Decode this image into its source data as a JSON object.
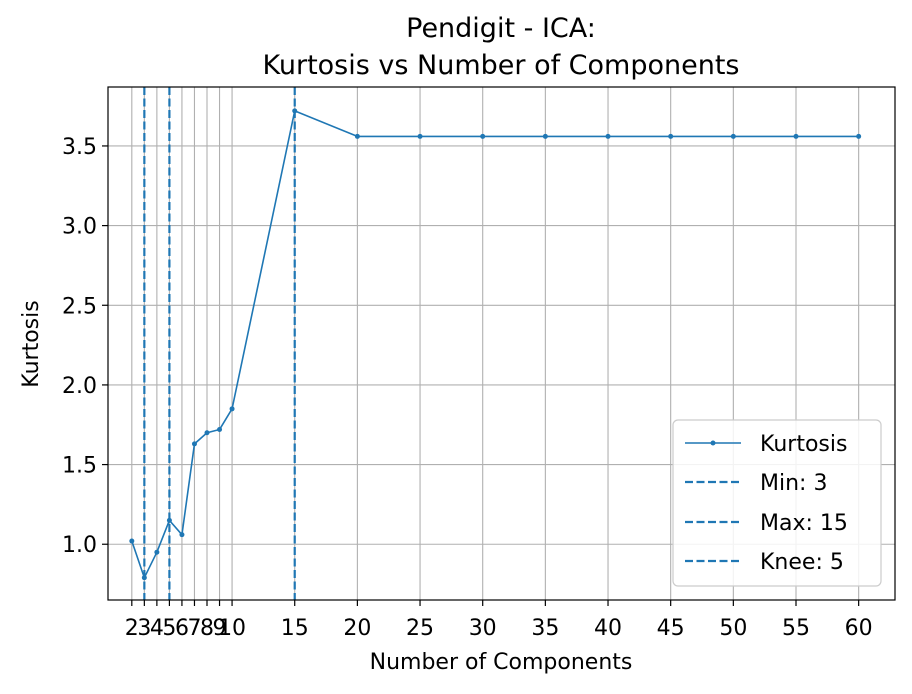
{
  "chart_data": {
    "type": "line",
    "title_lines": [
      "Pendigit - ICA:",
      "Kurtosis vs Number of Components"
    ],
    "xlabel": "Number of Components",
    "ylabel": "Kurtosis",
    "xlim": [
      0.1,
      62.9
    ],
    "ylim": [
      0.65,
      3.87
    ],
    "xticks": [
      2,
      3,
      4,
      5,
      6,
      7,
      8,
      9,
      10,
      15,
      20,
      25,
      30,
      35,
      40,
      45,
      50,
      55,
      60
    ],
    "xtick_labels": [
      "2",
      "3",
      "4",
      "5",
      "6",
      "7",
      "8",
      "9",
      "10",
      "15",
      "20",
      "25",
      "30",
      "35",
      "40",
      "45",
      "50",
      "55",
      "60"
    ],
    "yticks": [
      1.0,
      1.5,
      2.0,
      2.5,
      3.0,
      3.5
    ],
    "ytick_labels": [
      "1.0",
      "1.5",
      "2.0",
      "2.5",
      "3.0",
      "3.5"
    ],
    "grid": true,
    "legend_position": "bottom-right",
    "series": [
      {
        "name": "Kurtosis",
        "color": "#1f77b4",
        "marker": "dot",
        "x": [
          2,
          3,
          4,
          5,
          6,
          7,
          8,
          9,
          10,
          15,
          20,
          25,
          30,
          35,
          40,
          45,
          50,
          55,
          60
        ],
        "y": [
          1.02,
          0.79,
          0.95,
          1.15,
          1.06,
          1.63,
          1.7,
          1.72,
          1.85,
          3.72,
          3.56,
          3.56,
          3.56,
          3.56,
          3.56,
          3.56,
          3.56,
          3.56,
          3.56
        ]
      }
    ],
    "vlines": [
      {
        "label": "Min: 3",
        "x": 3,
        "color": "#1f77b4",
        "style": "dashed"
      },
      {
        "label": "Max: 15",
        "x": 15,
        "color": "#1f77b4",
        "style": "dashed"
      },
      {
        "label": "Knee: 5",
        "x": 5,
        "color": "#1f77b4",
        "style": "dashed"
      }
    ]
  }
}
